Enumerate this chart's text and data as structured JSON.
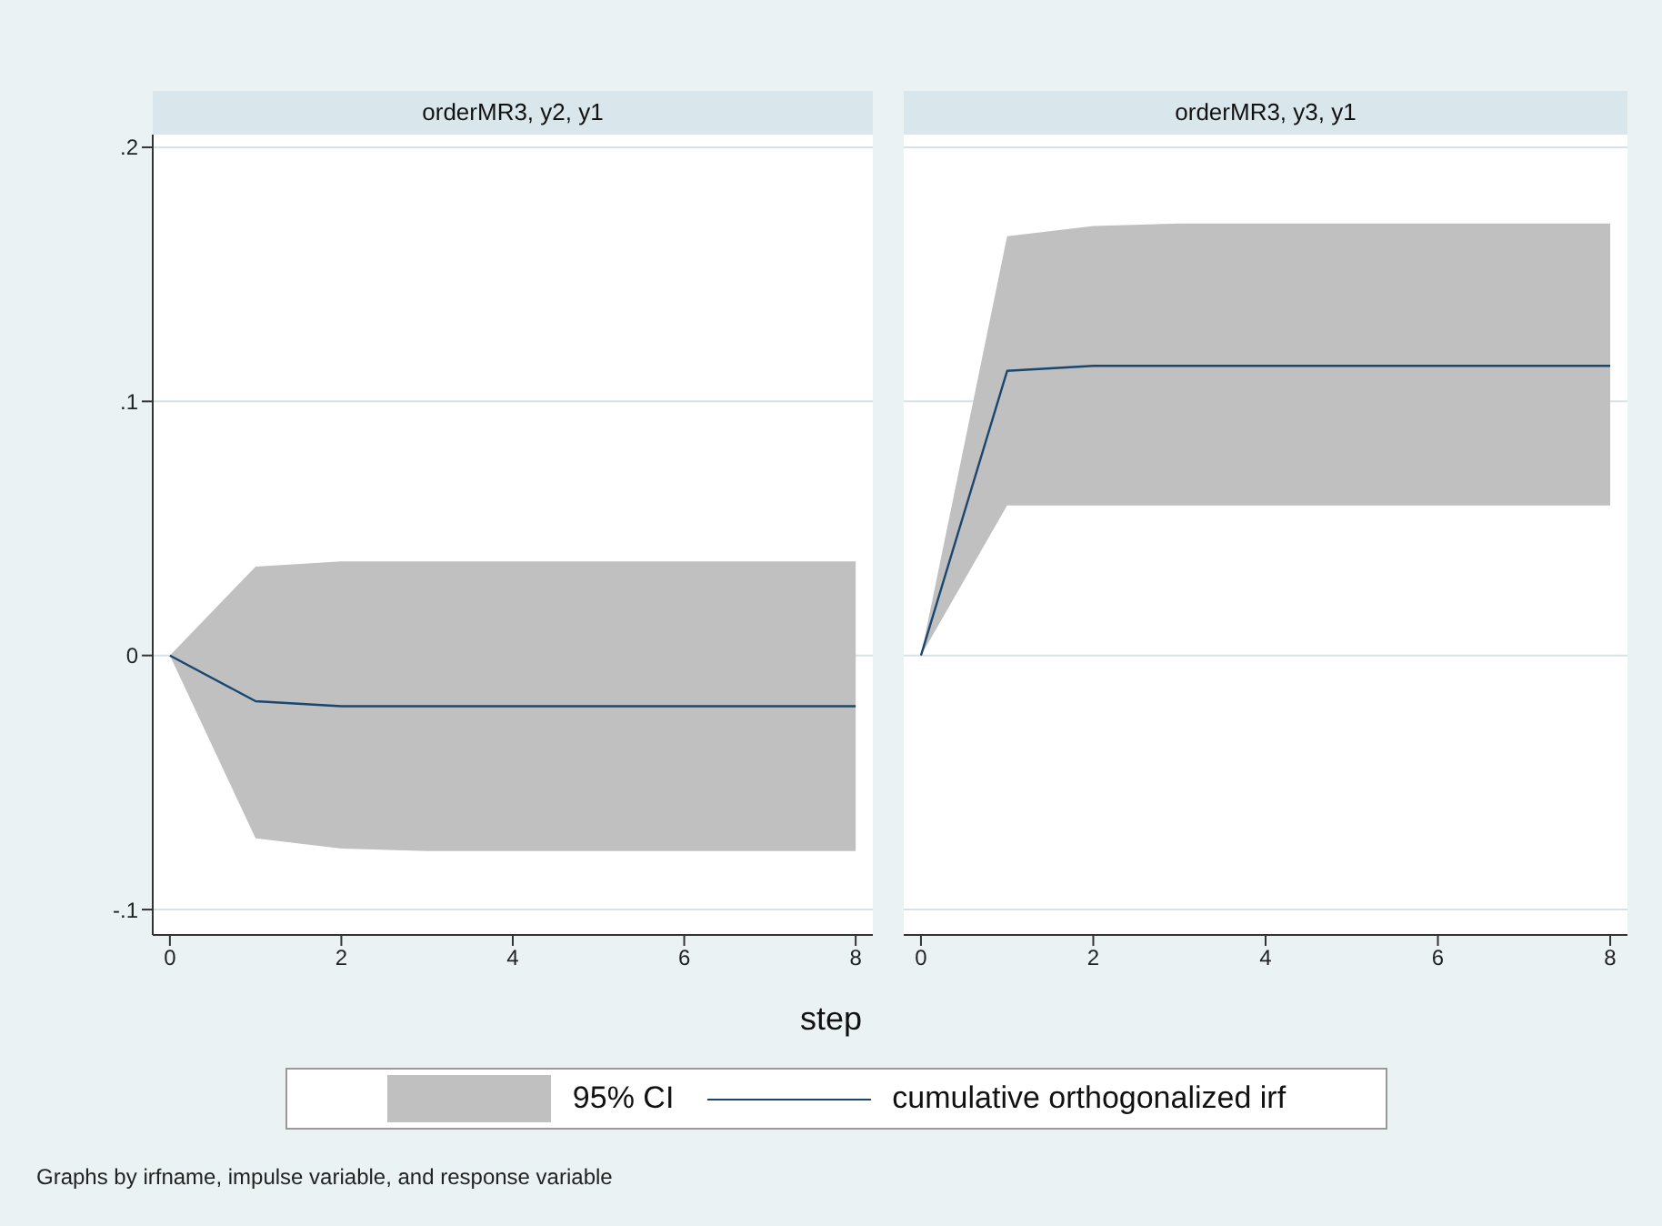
{
  "chart_data": [
    {
      "type": "line",
      "title": "orderMR3, y2, y1",
      "xlabel": "step",
      "x": [
        0,
        1,
        2,
        3,
        4,
        5,
        6,
        7,
        8
      ],
      "xlim": [
        -0.2,
        8.2
      ],
      "xticks": [
        0,
        2,
        4,
        6,
        8
      ],
      "ylim": [
        -0.11,
        0.205
      ],
      "yticks": [
        {
          "value": -0.1,
          "label": "-.1"
        },
        0,
        {
          "value": 0.1,
          "label": ".1"
        },
        {
          "value": 0.2,
          "label": ".2"
        }
      ],
      "grid": "y",
      "legend": "bottom",
      "annotations": [
        "95% CI",
        "Graphs by irfname, impulse variable, and response variable"
      ],
      "series": [
        {
          "name": "cumulative orthogonalized irf",
          "color": "#1a476f",
          "values": [
            0,
            -0.018,
            -0.02,
            -0.02,
            -0.02,
            -0.02,
            -0.02,
            -0.02,
            -0.02
          ],
          "lower": [
            0,
            -0.072,
            -0.076,
            -0.077,
            -0.077,
            -0.077,
            -0.077,
            -0.077,
            -0.077
          ],
          "upper": [
            0,
            0.035,
            0.037,
            0.037,
            0.037,
            0.037,
            0.037,
            0.037,
            0.037
          ]
        }
      ]
    },
    {
      "type": "line",
      "title": "orderMR3, y3, y1",
      "x": [
        0,
        1,
        2,
        3,
        4,
        5,
        6,
        7,
        8
      ],
      "xlim": [
        -0.2,
        8.2
      ],
      "xticks": [
        0,
        2,
        4,
        6,
        8
      ],
      "ylim": [
        -0.11,
        0.205
      ],
      "yticks": [
        -0.1,
        0,
        0.1,
        0.2
      ],
      "grid": "y",
      "tick_labels": "x",
      "series": [
        {
          "color": "#1a476f",
          "values": [
            0,
            0.112,
            0.114,
            0.114,
            0.114,
            0.114,
            0.114,
            0.114,
            0.114
          ],
          "lower": [
            0,
            0.059,
            0.059,
            0.059,
            0.059,
            0.059,
            0.059,
            0.059,
            0.059
          ],
          "upper": [
            0,
            0.165,
            0.169,
            0.17,
            0.17,
            0.17,
            0.17,
            0.17,
            0.17
          ]
        }
      ]
    }
  ]
}
